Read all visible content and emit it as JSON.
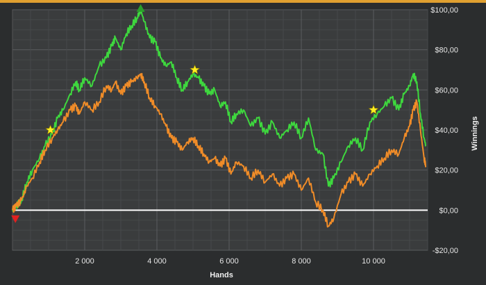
{
  "chart_data": {
    "type": "line",
    "xlabel": "Hands",
    "ylabel": "Winnings",
    "xlim": [
      0,
      11500
    ],
    "ylim": [
      -20,
      100
    ],
    "x_ticks": [
      {
        "value": 2000,
        "label": "2 000"
      },
      {
        "value": 4000,
        "label": "4 000"
      },
      {
        "value": 6000,
        "label": "6 000"
      },
      {
        "value": 8000,
        "label": "8 000"
      },
      {
        "value": 10000,
        "label": "10 000"
      }
    ],
    "y_ticks": [
      {
        "value": 100,
        "label": "$100,00"
      },
      {
        "value": 80,
        "label": "$80,00"
      },
      {
        "value": 60,
        "label": "$60,00"
      },
      {
        "value": 40,
        "label": "$40,00"
      },
      {
        "value": 20,
        "label": "$20,00"
      },
      {
        "value": 0,
        "label": "$0,00"
      },
      {
        "value": -20,
        "label": "-$20,00"
      }
    ],
    "grid": true,
    "zero_line": true,
    "series": [
      {
        "color": "#3ed83e",
        "x": [
          0,
          100,
          250,
          400,
          550,
          750,
          900,
          1100,
          1250,
          1400,
          1600,
          1750,
          1850,
          2000,
          2200,
          2400,
          2600,
          2750,
          2850,
          3000,
          3150,
          3300,
          3450,
          3550,
          3650,
          3800,
          3950,
          4100,
          4250,
          4400,
          4550,
          4700,
          4850,
          5000,
          5150,
          5300,
          5450,
          5600,
          5750,
          5900,
          6050,
          6200,
          6400,
          6600,
          6800,
          7000,
          7200,
          7400,
          7600,
          7800,
          8000,
          8200,
          8400,
          8600,
          8750,
          8900,
          9100,
          9300,
          9500,
          9700,
          9900,
          10100,
          10300,
          10500,
          10700,
          10850,
          11000,
          11100,
          11200,
          11300,
          11400,
          11450
        ],
        "values": [
          0,
          2,
          5,
          14,
          20,
          26,
          32,
          38,
          46,
          50,
          58,
          64,
          60,
          66,
          62,
          72,
          76,
          82,
          86,
          80,
          88,
          92,
          96,
          100,
          94,
          86,
          84,
          76,
          72,
          74,
          66,
          60,
          64,
          68,
          66,
          62,
          58,
          60,
          52,
          54,
          44,
          48,
          50,
          42,
          46,
          38,
          44,
          36,
          40,
          44,
          36,
          46,
          30,
          28,
          12,
          16,
          24,
          32,
          36,
          30,
          44,
          48,
          52,
          56,
          50,
          58,
          62,
          68,
          64,
          48,
          36,
          32
        ]
      },
      {
        "color": "#f08c28",
        "x": [
          0,
          100,
          250,
          400,
          550,
          750,
          900,
          1100,
          1250,
          1400,
          1600,
          1750,
          1850,
          2000,
          2200,
          2400,
          2600,
          2750,
          2850,
          3000,
          3150,
          3300,
          3450,
          3550,
          3650,
          3800,
          3950,
          4100,
          4250,
          4400,
          4550,
          4700,
          4850,
          5000,
          5150,
          5300,
          5450,
          5600,
          5750,
          5900,
          6050,
          6200,
          6400,
          6600,
          6800,
          7000,
          7200,
          7400,
          7600,
          7800,
          8000,
          8200,
          8400,
          8600,
          8750,
          8900,
          9100,
          9300,
          9500,
          9700,
          9900,
          10100,
          10300,
          10500,
          10700,
          10850,
          11000,
          11100,
          11200,
          11300,
          11400,
          11450
        ],
        "values": [
          0,
          2,
          5,
          12,
          16,
          24,
          30,
          36,
          40,
          44,
          50,
          52,
          48,
          54,
          50,
          54,
          62,
          60,
          64,
          58,
          62,
          64,
          66,
          68,
          64,
          56,
          52,
          48,
          42,
          36,
          34,
          30,
          34,
          36,
          32,
          28,
          24,
          26,
          22,
          26,
          18,
          24,
          22,
          16,
          20,
          14,
          18,
          12,
          16,
          18,
          10,
          16,
          4,
          0,
          -8,
          -4,
          8,
          14,
          18,
          12,
          18,
          22,
          26,
          30,
          28,
          36,
          42,
          50,
          54,
          40,
          26,
          22
        ]
      }
    ],
    "markers": [
      {
        "shape": "star",
        "color": "#ffee22",
        "x": 1050,
        "y": 40
      },
      {
        "shape": "star",
        "color": "#ffee22",
        "x": 5050,
        "y": 70
      },
      {
        "shape": "star",
        "color": "#ffee22",
        "x": 10000,
        "y": 50
      },
      {
        "shape": "triangle-up",
        "color": "#2aa02a",
        "x": 3550,
        "y": 100
      },
      {
        "shape": "triangle-down",
        "color": "#e02020",
        "x": 80,
        "y": -4
      }
    ]
  }
}
